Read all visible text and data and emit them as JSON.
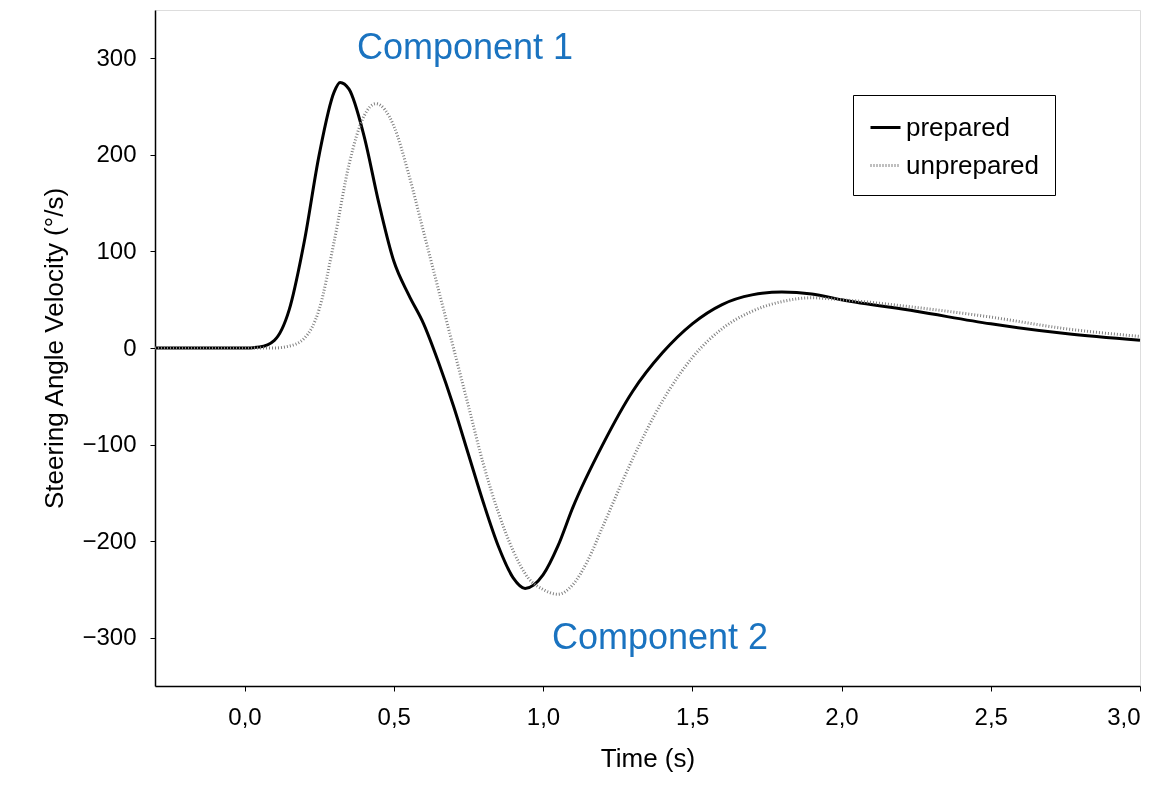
{
  "chart_data": {
    "type": "line",
    "xlabel": "Time (s)",
    "ylabel": "Steering Angle Velocity (°/s)",
    "xlim": [
      -0.3,
      3.0
    ],
    "ylim": [
      -350,
      350
    ],
    "xticks": [
      {
        "value": 0,
        "label": "0,0"
      },
      {
        "value": 0.5,
        "label": "0,5"
      },
      {
        "value": 1.0,
        "label": "1,0"
      },
      {
        "value": 1.5,
        "label": "1,5"
      },
      {
        "value": 2.0,
        "label": "2,0"
      },
      {
        "value": 2.5,
        "label": "2,5"
      },
      {
        "value": 3.0,
        "label": "3,0"
      }
    ],
    "yticks": [
      -300,
      -200,
      -100,
      0,
      100,
      200,
      300
    ],
    "grid": false,
    "legend": "top right",
    "marker": "none",
    "series": [
      {
        "name": "prepared",
        "color": "#000000",
        "line_style": "solid",
        "x": [
          -0.3,
          0,
          0.05,
          0.1,
          0.15,
          0.2,
          0.25,
          0.3,
          0.32,
          0.35,
          0.4,
          0.45,
          0.5,
          0.55,
          0.6,
          0.65,
          0.7,
          0.75,
          0.8,
          0.85,
          0.9,
          0.94,
          1.0,
          1.05,
          1.1,
          1.2,
          1.3,
          1.4,
          1.5,
          1.6,
          1.7,
          1.8,
          1.9,
          2.0,
          2.25,
          2.5,
          2.75,
          3.0
        ],
        "values": [
          0,
          0,
          1,
          8,
          40,
          110,
          200,
          265,
          275,
          268,
          220,
          150,
          90,
          55,
          25,
          -15,
          -60,
          -110,
          -160,
          -205,
          -238,
          -249,
          -235,
          -205,
          -165,
          -100,
          -45,
          -5,
          25,
          45,
          55,
          58,
          56,
          50,
          38,
          25,
          15,
          8
        ]
      },
      {
        "name": "unprepared",
        "color": "#808080",
        "line_style": "dotted",
        "x": [
          -0.3,
          0.1,
          0.15,
          0.2,
          0.25,
          0.3,
          0.35,
          0.4,
          0.44,
          0.5,
          0.55,
          0.6,
          0.65,
          0.7,
          0.75,
          0.8,
          0.85,
          0.9,
          0.95,
          1.0,
          1.05,
          1.1,
          1.15,
          1.2,
          1.3,
          1.4,
          1.5,
          1.6,
          1.7,
          1.8,
          1.9,
          2.0,
          2.25,
          2.5,
          2.75,
          3.0
        ],
        "values": [
          0,
          0,
          2,
          10,
          40,
          110,
          190,
          240,
          253,
          230,
          180,
          120,
          60,
          0,
          -60,
          -120,
          -170,
          -210,
          -238,
          -250,
          -255,
          -245,
          -220,
          -185,
          -115,
          -55,
          -10,
          20,
          38,
          48,
          52,
          50,
          42,
          32,
          20,
          12
        ]
      }
    ],
    "annotations": [
      "Component 1",
      "Component 2"
    ]
  }
}
